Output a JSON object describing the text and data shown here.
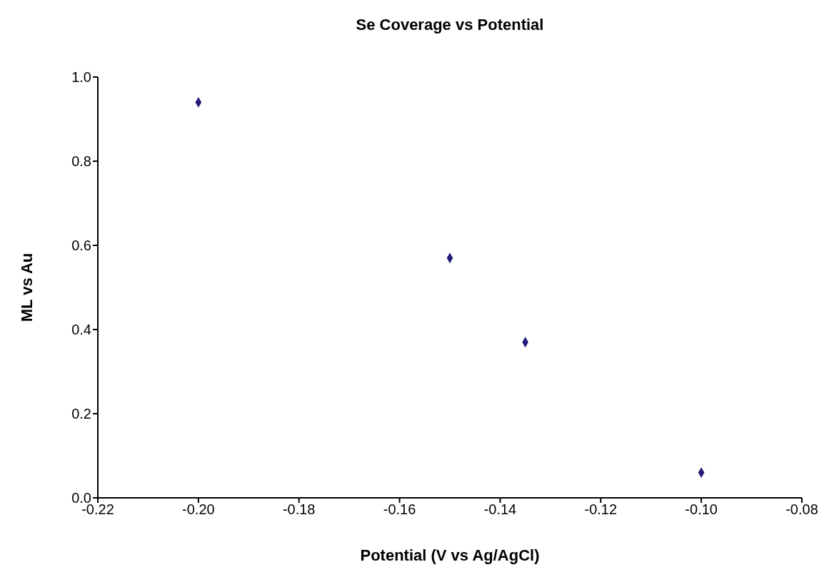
{
  "chart_data": {
    "type": "scatter",
    "title": "Se Coverage vs Potential",
    "xlabel": "Potential (V vs Ag/AgCl)",
    "ylabel": "ML vs Au",
    "x": [
      -0.2,
      -0.15,
      -0.135,
      -0.1
    ],
    "series": [
      {
        "color": "#221a78",
        "values": [
          0.94,
          0.57,
          0.37,
          0.06
        ]
      }
    ],
    "xlim": [
      -0.22,
      -0.08
    ],
    "xticks": [
      {
        "value": -0.22,
        "label": "-0.22"
      },
      {
        "value": -0.2,
        "label": "-0.20"
      },
      {
        "value": -0.18,
        "label": "-0.18"
      },
      {
        "value": -0.16,
        "label": "-0.16"
      },
      {
        "value": -0.14,
        "label": "-0.14"
      },
      {
        "value": -0.12,
        "label": "-0.12"
      },
      {
        "value": -0.1,
        "label": "-0.10"
      },
      {
        "value": -0.08,
        "label": "-0.08"
      }
    ],
    "ylim": [
      0,
      1
    ],
    "yticks": [
      {
        "value": 0,
        "label": "0.0"
      },
      {
        "value": 0.2,
        "label": "0.2"
      },
      {
        "value": 0.4,
        "label": "0.4"
      },
      {
        "value": 0.6,
        "label": "0.6"
      },
      {
        "value": 0.8,
        "label": "0.8"
      },
      {
        "value": 1,
        "label": "1.0"
      }
    ],
    "marker": "diamond",
    "grid": false,
    "legend": false
  }
}
